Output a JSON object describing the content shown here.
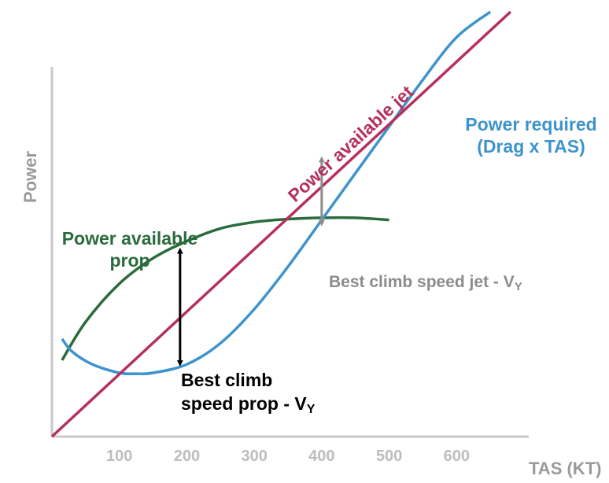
{
  "chart_data": {
    "type": "line",
    "title": "",
    "xlabel": "TAS (KT)",
    "ylabel": "Power",
    "xlim": [
      0,
      700
    ],
    "ylim": [
      0,
      100
    ],
    "xticks": [
      "100",
      "200",
      "300",
      "400",
      "500",
      "600"
    ],
    "yticks": [],
    "grid": false,
    "series": [
      {
        "name": "Power available jet",
        "color": "#b5305e",
        "x": [
          0,
          680
        ],
        "y": [
          0,
          100
        ]
      },
      {
        "name": "Power required (Drag x TAS)",
        "color": "#3d94cc",
        "x": [
          15,
          30,
          60,
          100,
          125,
          150,
          200,
          250,
          300,
          350,
          400,
          450,
          500,
          550,
          600,
          650
        ],
        "y": [
          23,
          20,
          17,
          15,
          14.8,
          15,
          17,
          22,
          30,
          40,
          51,
          62,
          73,
          84,
          94,
          100
        ]
      },
      {
        "name": "Power available prop",
        "color": "#2a6b3c",
        "x": [
          15,
          50,
          100,
          150,
          200,
          250,
          300,
          350,
          400,
          450,
          500
        ],
        "y": [
          18,
          27,
          36,
          42,
          46,
          49,
          50.5,
          51.2,
          51.5,
          51.5,
          51
        ]
      }
    ],
    "legend_labels": {
      "jet": "Power available jet",
      "required_line1": "Power required",
      "required_line2": "(Drag x TAS)",
      "prop_line1": "Power available",
      "prop_line2": "prop"
    },
    "annotations": [
      {
        "name": "best-climb-prop",
        "color": "#000000",
        "x": 190,
        "y_from": 16.5,
        "y_to": 44.5,
        "label_line1": "Best climb",
        "label_line2": "speed prop - V",
        "subscript": "Y"
      },
      {
        "name": "best-climb-jet",
        "color": "#8c8c8c",
        "x": 400,
        "y_from": 49.5,
        "y_to": 66,
        "label_line1": "Best climb speed jet - V",
        "subscript": "Y"
      }
    ]
  }
}
